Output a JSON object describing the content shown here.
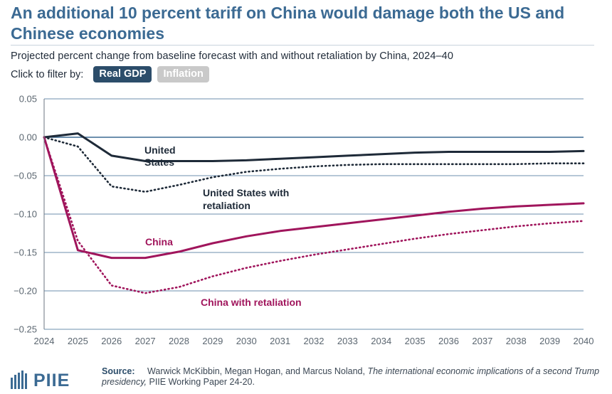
{
  "header": {
    "title": "An additional 10 percent tariff on China would damage both the US and Chinese economies",
    "subtitle": "Projected percent change from baseline forecast with and without retaliation by China, 2024–40"
  },
  "filter": {
    "label": "Click to filter by:",
    "options": [
      {
        "label": "Real GDP",
        "active": true
      },
      {
        "label": "Inflation",
        "active": false
      }
    ]
  },
  "colors": {
    "us": "#1e2a38",
    "china": "#a0155c",
    "zero_line": "#3b6a93",
    "grid": "#3b6a93"
  },
  "chart_data": {
    "type": "line",
    "xlabel": "",
    "ylabel": "",
    "xlim": [
      2024,
      2040
    ],
    "ylim": [
      -0.25,
      0.05
    ],
    "x": [
      2024,
      2025,
      2026,
      2027,
      2028,
      2029,
      2030,
      2031,
      2032,
      2033,
      2034,
      2035,
      2036,
      2037,
      2038,
      2039,
      2040
    ],
    "x_ticks": [
      "2024",
      "2025",
      "2026",
      "2027",
      "2028",
      "2029",
      "2030",
      "2031",
      "2032",
      "2033",
      "2034",
      "2035",
      "2036",
      "2037",
      "2038",
      "2039",
      "2040"
    ],
    "y_ticks": [
      {
        "value": 0.05,
        "label": "0.05"
      },
      {
        "value": 0.0,
        "label": "0.00"
      },
      {
        "value": -0.05,
        "label": "−0.05"
      },
      {
        "value": -0.1,
        "label": "−0.10"
      },
      {
        "value": -0.15,
        "label": "−0.15"
      },
      {
        "value": -0.2,
        "label": "−0.20"
      },
      {
        "value": -0.25,
        "label": "−0.25"
      }
    ],
    "series": [
      {
        "name": "United States",
        "label_lines": [
          "United",
          "States"
        ],
        "color_key": "us",
        "dashed": false,
        "values": [
          0.0,
          0.005,
          -0.024,
          -0.031,
          -0.031,
          -0.031,
          -0.03,
          -0.028,
          -0.026,
          -0.024,
          -0.022,
          -0.02,
          -0.019,
          -0.019,
          -0.019,
          -0.019,
          -0.018
        ]
      },
      {
        "name": "United States with retaliation",
        "label_lines": [
          "United States with",
          "retaliation"
        ],
        "color_key": "us",
        "dashed": true,
        "values": [
          0.0,
          -0.012,
          -0.064,
          -0.071,
          -0.062,
          -0.052,
          -0.045,
          -0.041,
          -0.038,
          -0.036,
          -0.035,
          -0.035,
          -0.035,
          -0.035,
          -0.035,
          -0.034,
          -0.034
        ]
      },
      {
        "name": "China",
        "label_lines": [
          "China"
        ],
        "color_key": "china",
        "dashed": false,
        "values": [
          0.0,
          -0.147,
          -0.157,
          -0.157,
          -0.149,
          -0.138,
          -0.129,
          -0.122,
          -0.117,
          -0.112,
          -0.107,
          -0.102,
          -0.097,
          -0.093,
          -0.09,
          -0.088,
          -0.086
        ]
      },
      {
        "name": "China with retaliation",
        "label_lines": [
          "China with retaliation"
        ],
        "color_key": "china",
        "dashed": true,
        "values": [
          0.0,
          -0.135,
          -0.193,
          -0.203,
          -0.195,
          -0.181,
          -0.17,
          -0.161,
          -0.153,
          -0.146,
          -0.139,
          -0.132,
          -0.126,
          -0.121,
          -0.116,
          -0.112,
          -0.109
        ]
      }
    ]
  },
  "footer": {
    "logo_text": "PIIE",
    "source_label": "Source:",
    "source_authors": "Warwick McKibbin, Megan Hogan, and Marcus Noland,",
    "source_title": "The international economic implications of a second Trump presidency,",
    "source_rest": "PIIE Working Paper 24-20."
  }
}
